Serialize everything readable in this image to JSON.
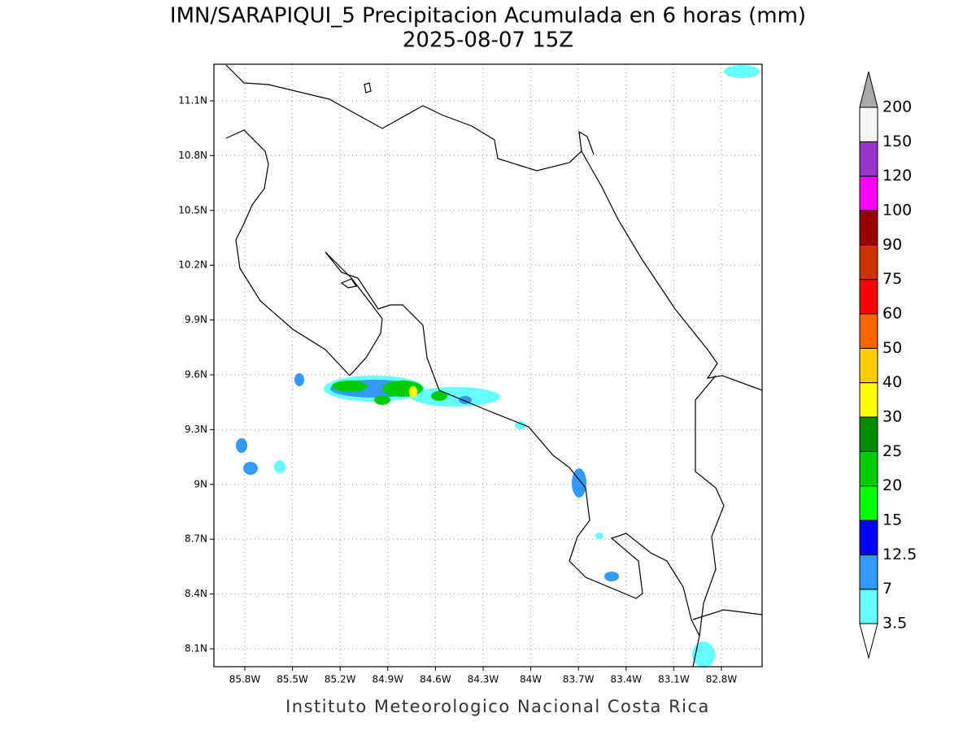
{
  "header": {
    "title": "IMN/SARAPIQUI_5 Precipitacion Acumulada en 6 horas (mm)",
    "subtitle": "2025-08-07 15Z"
  },
  "map": {
    "lon_labels": [
      "85.8W",
      "85.5W",
      "85.2W",
      "84.9W",
      "84.6W",
      "84.3W",
      "84W",
      "83.7W",
      "83.4W",
      "83.1W",
      "82.8W"
    ],
    "lat_labels": [
      "11.1N",
      "10.8N",
      "10.5N",
      "10.2N",
      "9.9N",
      "9.6N",
      "9.3N",
      "9N",
      "8.7N",
      "8.4N",
      "8.1N"
    ]
  },
  "colorbar": {
    "labels": [
      3.5,
      7,
      12.5,
      15,
      20,
      25,
      30,
      40,
      50,
      60,
      75,
      90,
      100,
      120,
      150,
      200
    ],
    "colors": [
      "#66ffff",
      "#3399ff",
      "#0000ff",
      "#00ff00",
      "#00cc00",
      "#008c00",
      "#ffff00",
      "#ffcc00",
      "#ff6600",
      "#ff0000",
      "#cc3300",
      "#990000",
      "#ff00ff",
      "#9933cc",
      "#f5f5f5"
    ],
    "under_color": "#ffffff",
    "over_color": "#aaaaaa"
  },
  "footer": "Instituto Meteorologico Nacional Costa Rica"
}
